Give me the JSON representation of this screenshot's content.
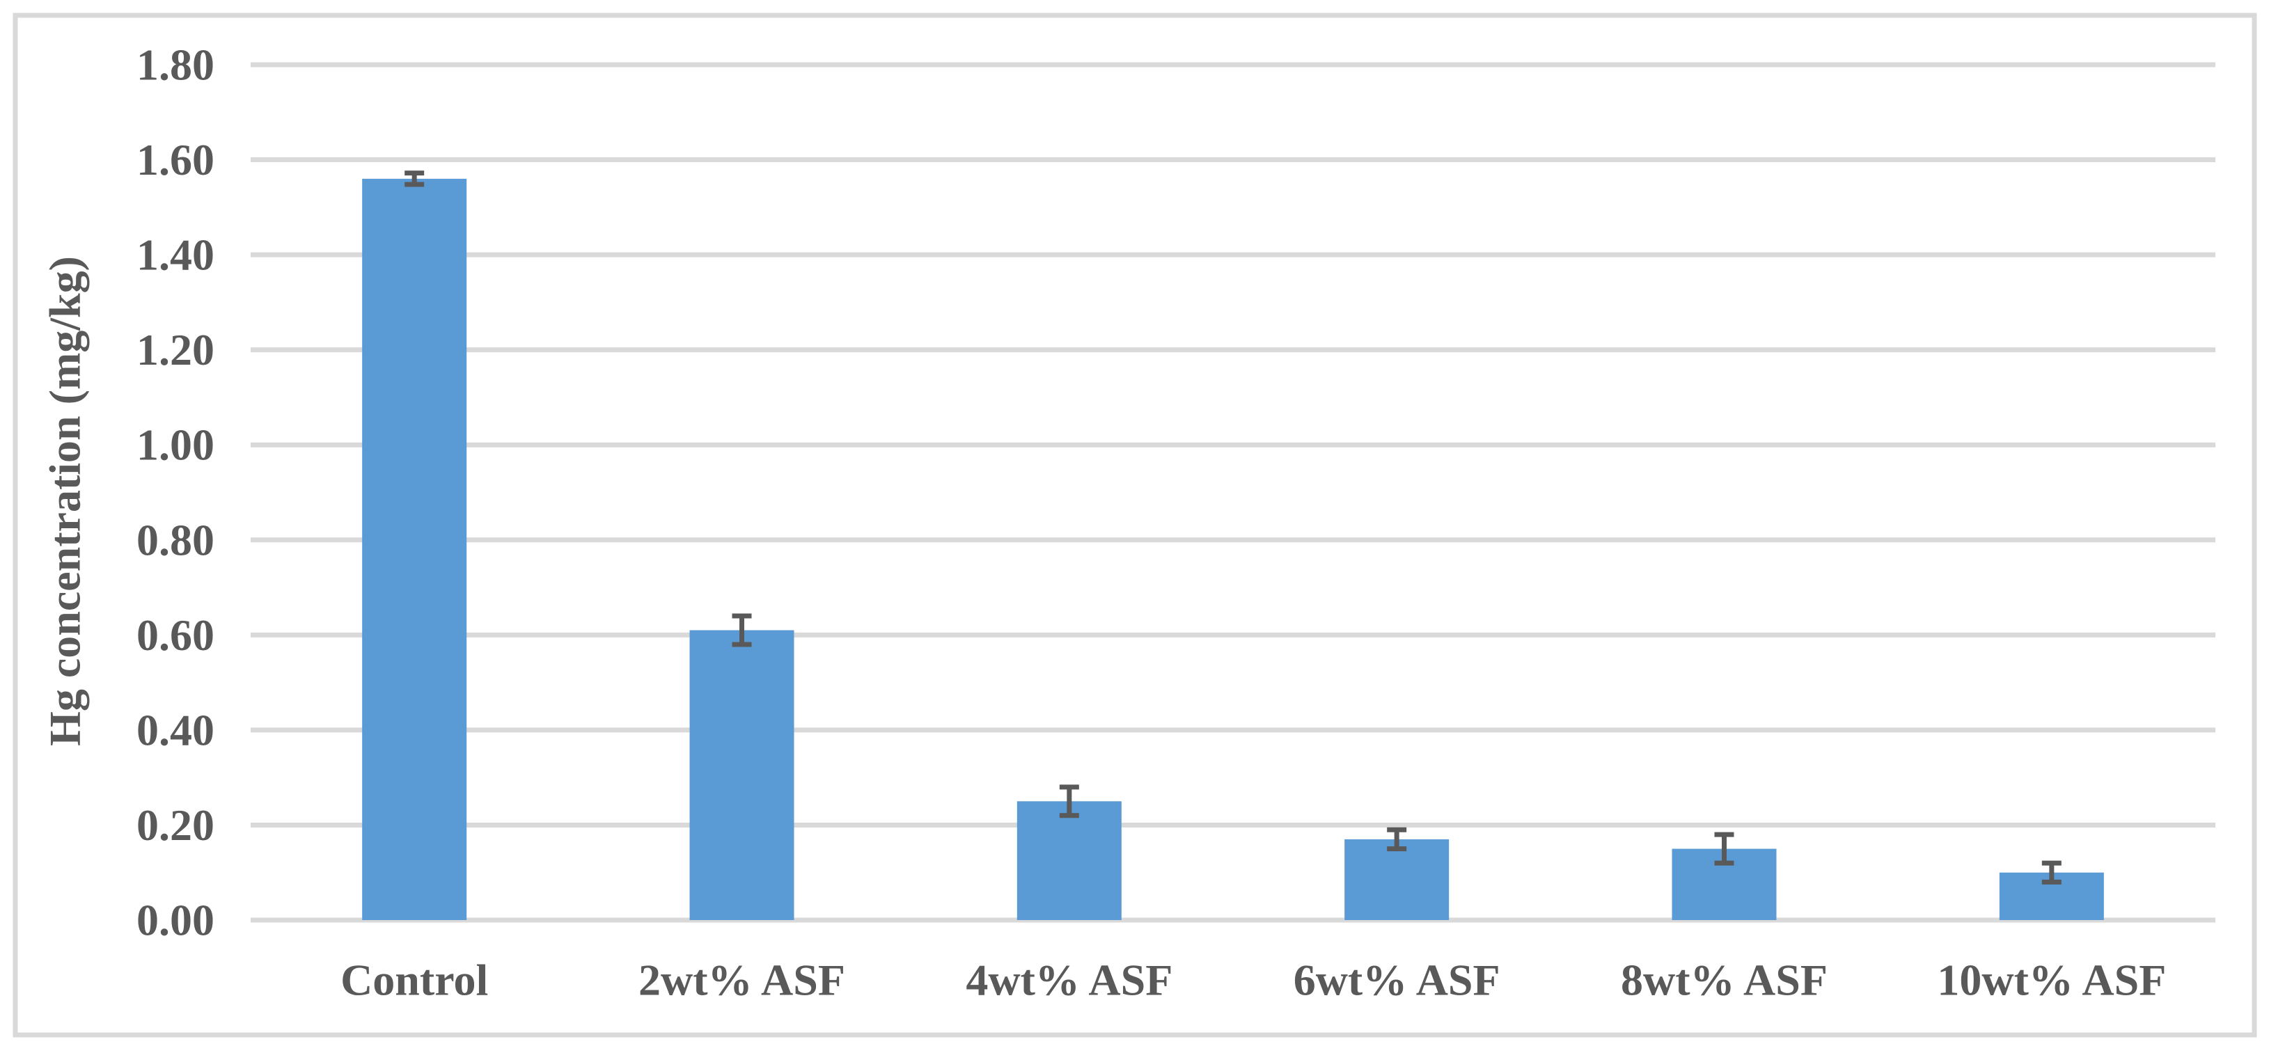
{
  "chart_data": {
    "type": "bar",
    "title": "",
    "xlabel": "",
    "ylabel": "Hg concentration (mg/kg)",
    "categories": [
      "Control",
      "2wt% ASF",
      "4wt% ASF",
      "6wt% ASF",
      "8wt% ASF",
      "10wt% ASF"
    ],
    "values": [
      1.56,
      0.61,
      0.25,
      0.17,
      0.15,
      0.1
    ],
    "error_bars": [
      0.012,
      0.03,
      0.03,
      0.02,
      0.03,
      0.02
    ],
    "ylim": [
      0.0,
      1.8
    ],
    "ytick_step": 0.2,
    "ytick_labels": [
      "0.00",
      "0.20",
      "0.40",
      "0.60",
      "0.80",
      "1.00",
      "1.20",
      "1.40",
      "1.60",
      "1.80"
    ],
    "grid": "horizontal-only",
    "legend": "none",
    "colors": {
      "bar": "#5B9BD5",
      "error_bar": "#595959",
      "gridline": "#D9D9D9",
      "figure_border": "#D9D9D9",
      "axis_text": "#595959",
      "background": "#FFFFFF"
    }
  }
}
